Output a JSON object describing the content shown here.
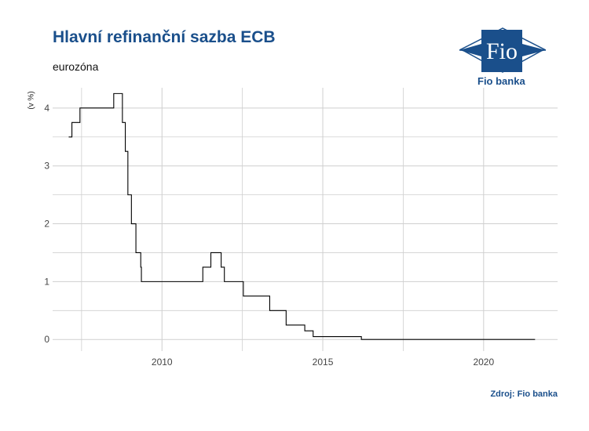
{
  "header": {
    "title": "Hlavní refinanční sazba ECB",
    "subtitle": "eurozóna"
  },
  "footer": {
    "source": "Zdroj: Fio banka"
  },
  "logo": {
    "icon": "fio-logo-icon",
    "text": "Fio",
    "name": "Fio banka"
  },
  "colors": {
    "brand": "#1a4f8b",
    "line": "#000000",
    "grid": "#cfcfcf"
  },
  "chart_data": {
    "type": "line",
    "title": "Hlavní refinanční sazba ECB",
    "subtitle": "eurozóna",
    "xlabel": "",
    "ylabel": "(v %)",
    "xlim": [
      2006.6,
      2022.3
    ],
    "ylim": [
      -0.2,
      4.35
    ],
    "x_ticks": [
      2010,
      2015,
      2020
    ],
    "y_ticks": [
      0,
      1,
      2,
      3,
      4
    ],
    "grid": true,
    "legend": "none",
    "series": [
      {
        "values": [
          [
            2007.1,
            3.5
          ],
          [
            2007.2,
            3.5
          ],
          [
            2007.2,
            3.75
          ],
          [
            2007.45,
            3.75
          ],
          [
            2007.45,
            4.0
          ],
          [
            2008.5,
            4.0
          ],
          [
            2008.5,
            4.25
          ],
          [
            2008.77,
            4.25
          ],
          [
            2008.77,
            3.75
          ],
          [
            2008.86,
            3.75
          ],
          [
            2008.86,
            3.25
          ],
          [
            2008.94,
            3.25
          ],
          [
            2008.94,
            2.5
          ],
          [
            2009.05,
            2.5
          ],
          [
            2009.05,
            2.0
          ],
          [
            2009.19,
            2.0
          ],
          [
            2009.19,
            1.5
          ],
          [
            2009.34,
            1.5
          ],
          [
            2009.34,
            1.25
          ],
          [
            2009.36,
            1.25
          ],
          [
            2009.36,
            1.0
          ],
          [
            2011.27,
            1.0
          ],
          [
            2011.27,
            1.25
          ],
          [
            2011.52,
            1.25
          ],
          [
            2011.52,
            1.5
          ],
          [
            2011.84,
            1.5
          ],
          [
            2011.84,
            1.25
          ],
          [
            2011.94,
            1.25
          ],
          [
            2011.94,
            1.0
          ],
          [
            2012.53,
            1.0
          ],
          [
            2012.53,
            0.75
          ],
          [
            2013.35,
            0.75
          ],
          [
            2013.35,
            0.5
          ],
          [
            2013.86,
            0.5
          ],
          [
            2013.86,
            0.25
          ],
          [
            2014.44,
            0.25
          ],
          [
            2014.44,
            0.15
          ],
          [
            2014.7,
            0.15
          ],
          [
            2014.7,
            0.05
          ],
          [
            2016.2,
            0.05
          ],
          [
            2016.2,
            0.0
          ],
          [
            2021.6,
            0.0
          ]
        ]
      }
    ]
  }
}
